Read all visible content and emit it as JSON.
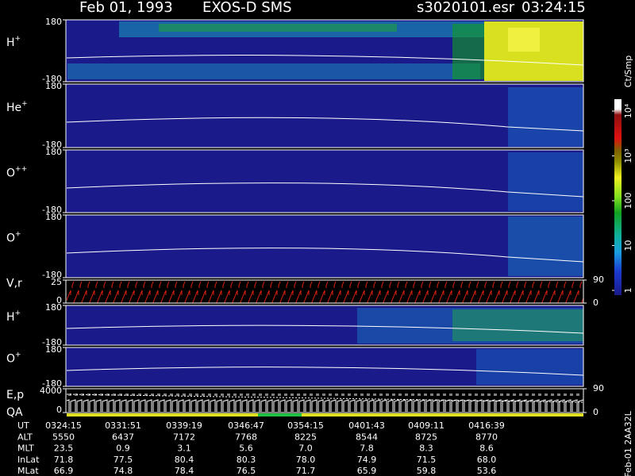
{
  "header": {
    "date": "Feb 01, 1993",
    "instrument": "EXOS-D SMS",
    "file": "s3020101.esr",
    "time": "03:24:15"
  },
  "panels": [
    {
      "label": "H",
      "label_sup": "+",
      "ylim": [
        -180,
        180
      ],
      "yticks": [
        180,
        -180
      ]
    },
    {
      "label": "He",
      "label_sup": "+",
      "ylim": [
        -180,
        180
      ],
      "yticks": [
        180,
        -180
      ]
    },
    {
      "label": "O",
      "label_sup": "++",
      "ylim": [
        -180,
        180
      ],
      "yticks": [
        180,
        -180
      ]
    },
    {
      "label": "O",
      "label_sup": "+",
      "ylim": [
        -180,
        180
      ],
      "yticks": [
        180,
        -180
      ]
    },
    {
      "label": "V,r",
      "ylim": [
        0,
        25
      ],
      "yticks": [
        25,
        0
      ],
      "y2lim": [
        0,
        90
      ],
      "y2ticks": [
        90,
        0
      ]
    },
    {
      "label": "H",
      "label_sup": "+",
      "ylim": [
        -180,
        180
      ],
      "yticks": [
        180,
        -180
      ]
    },
    {
      "label": "O",
      "label_sup": "+",
      "ylim": [
        -180,
        180
      ],
      "yticks": [
        180,
        -180
      ]
    },
    {
      "label": "E,p",
      "label2": "QA",
      "ylim": [
        0,
        4000
      ],
      "yticks": [
        4000,
        0
      ],
      "y2lim": [
        0,
        90
      ],
      "y2ticks": [
        90,
        0
      ]
    }
  ],
  "colorbar": {
    "unit": "Ct/Smp",
    "log": true,
    "ticks": [
      {
        "value": 10000,
        "label": "10⁴"
      },
      {
        "value": 1000,
        "label": "10³"
      },
      100,
      10,
      1
    ]
  },
  "table": {
    "rows": [
      [
        "UT",
        "0324:15",
        "0331:51",
        "0339:19",
        "0346:47",
        "0354:15",
        "0401:43",
        "0409:11",
        "0416:39"
      ],
      [
        "ALT",
        "5550",
        "6437",
        "7172",
        "7768",
        "8225",
        "8544",
        "8725",
        "8770"
      ],
      [
        "MLT",
        "23.5",
        "0.9",
        "3.1",
        "5.6",
        "7.0",
        "7.8",
        "8.3",
        "8.6"
      ],
      [
        "InLat",
        "71.8",
        "77.5",
        "80.4",
        "80.3",
        "78.0",
        "74.9",
        "71.5",
        "68.0"
      ],
      [
        "MLat",
        "66.9",
        "74.8",
        "78.4",
        "76.5",
        "71.7",
        "65.9",
        "59.8",
        "53.6"
      ]
    ]
  },
  "footer_id": "Feb-01 2AA32L"
}
